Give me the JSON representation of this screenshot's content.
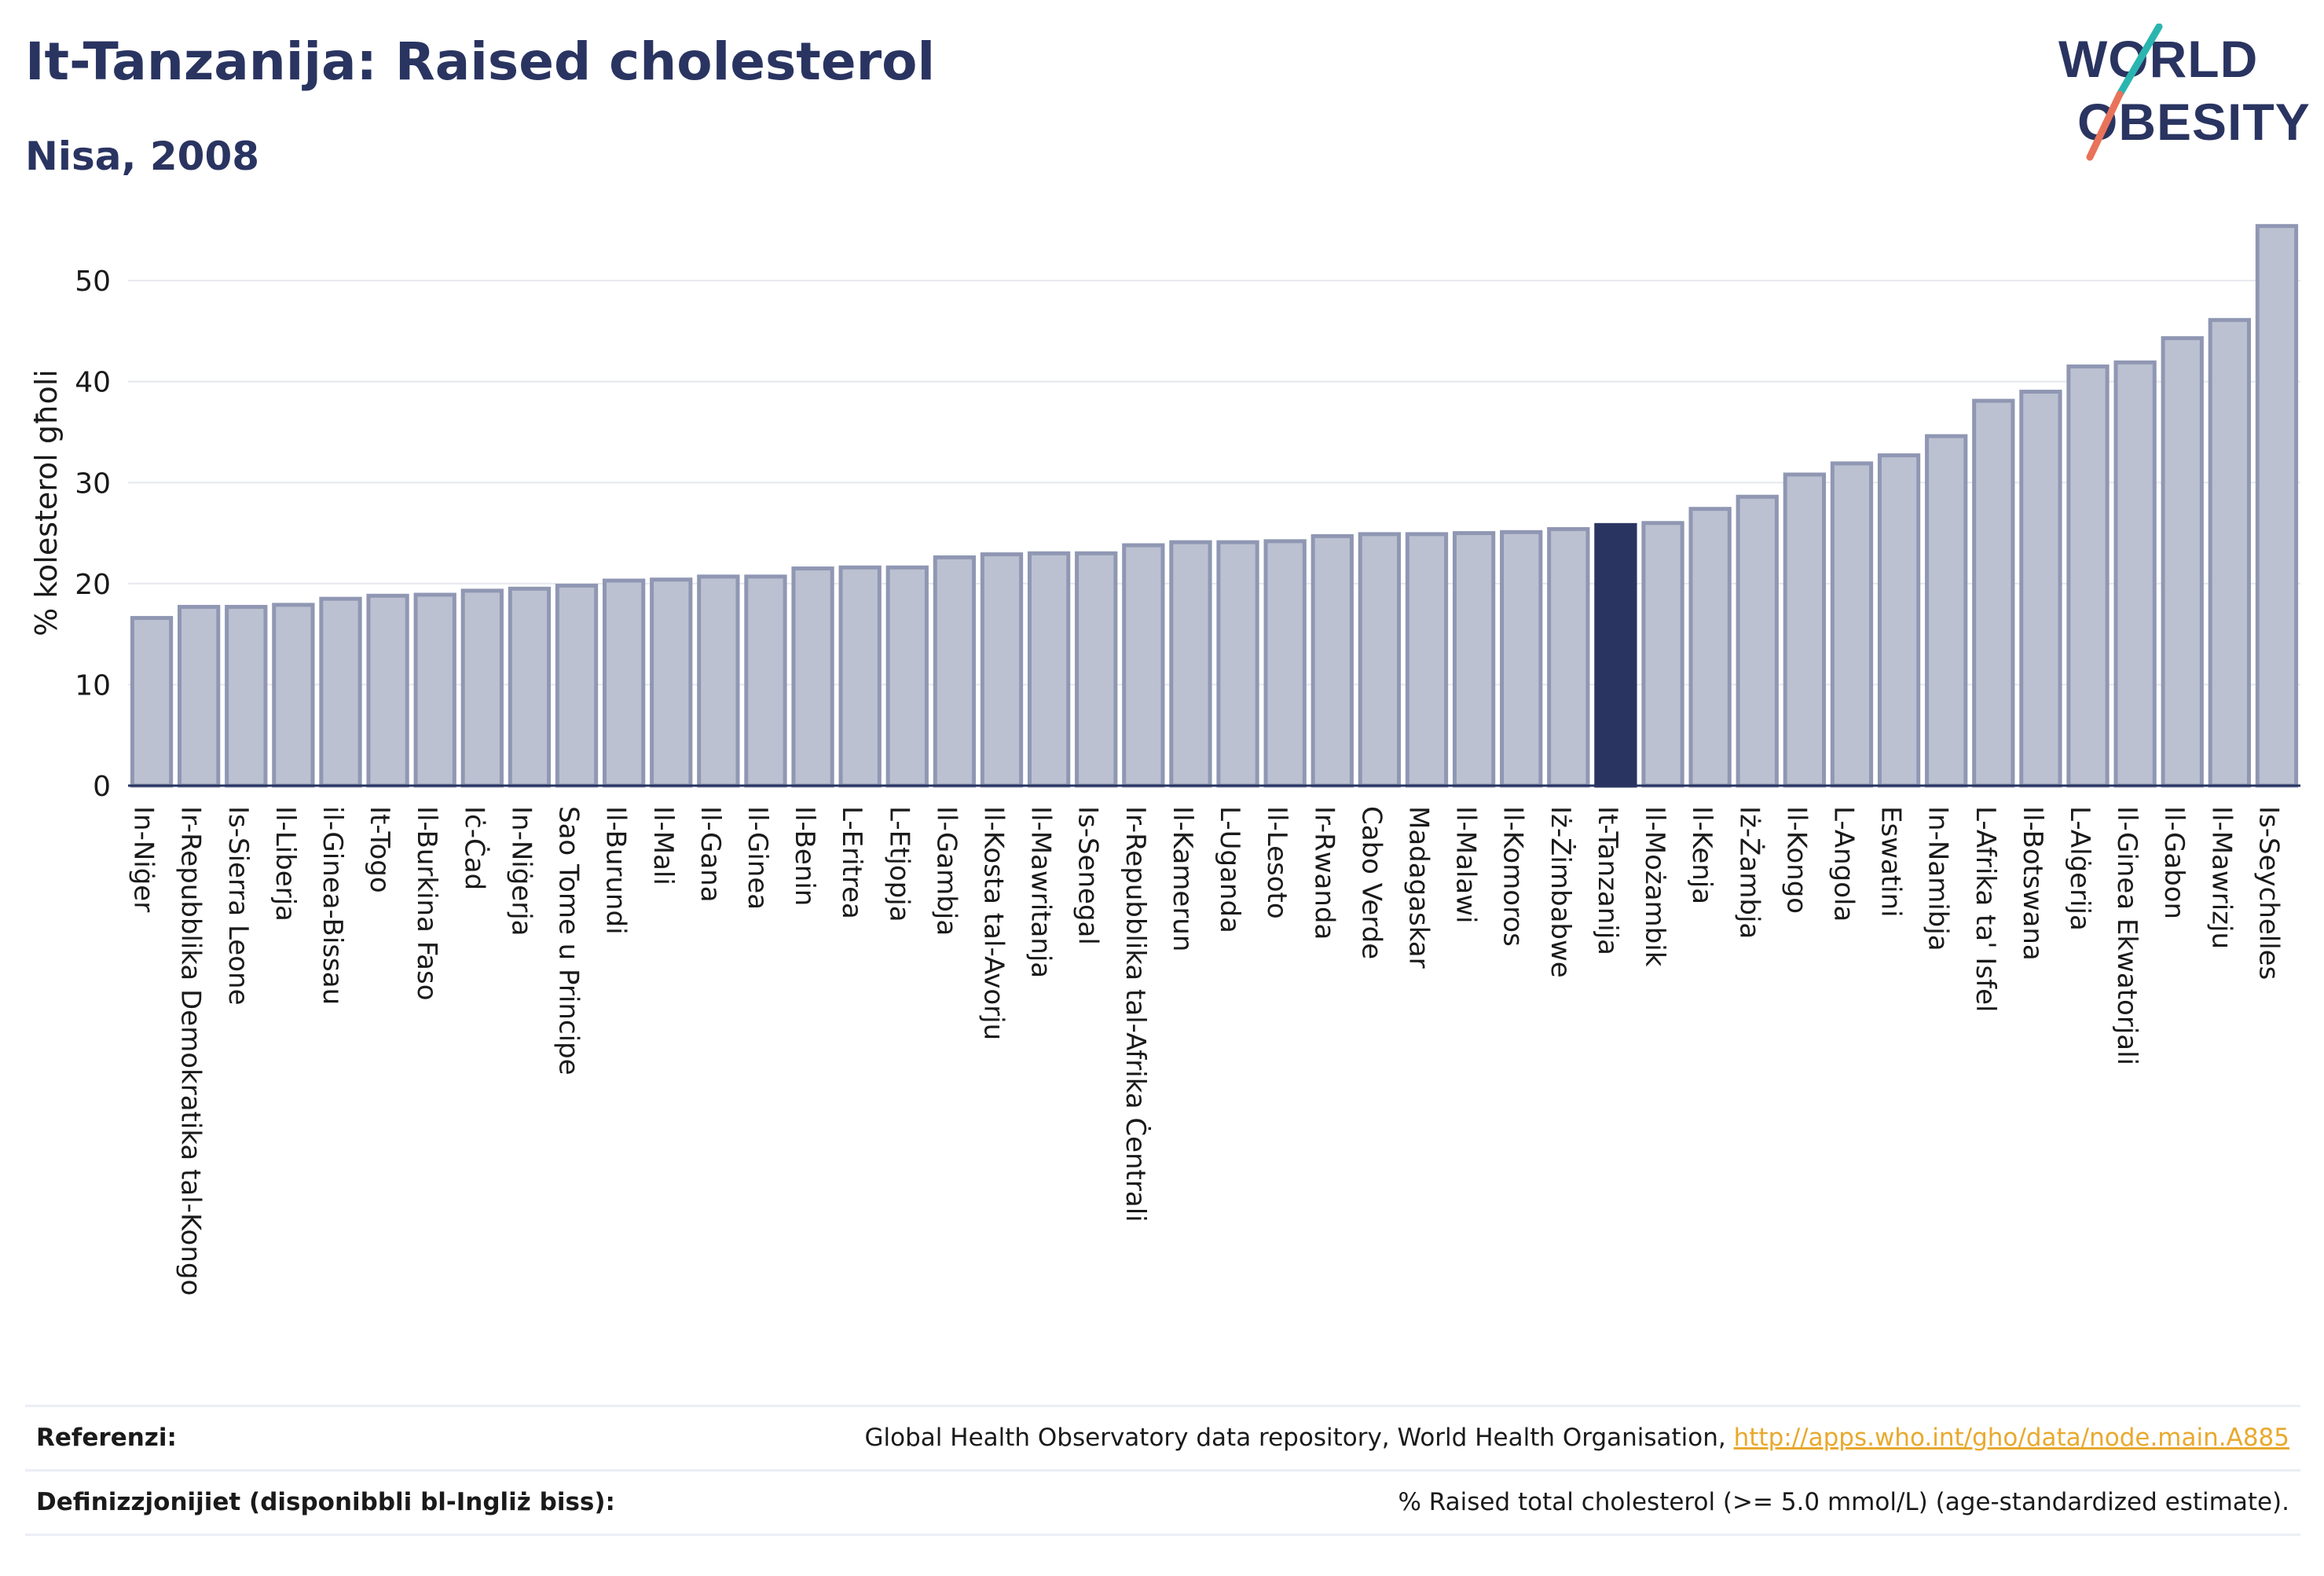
{
  "title": "It-Tanzanija: Raised cholesterol",
  "subtitle": "Nisa, 2008",
  "logo": {
    "line1": "WORLD",
    "line2": "OBESITY",
    "accent_teal": "#2bb5b0",
    "accent_coral": "#e8735a",
    "text_color": "#2a3461"
  },
  "colors": {
    "bar": "#bcc1d1",
    "bar_stroke": "#8f97b3",
    "highlight": "#2a3461",
    "grid": "#e6e8ef"
  },
  "footer": {
    "references_label": "Referenzi:",
    "references_text": "Global Health Observatory data repository, World Health Organisation, ",
    "references_link": "http://apps.who.int/gho/data/node.main.A885",
    "definitions_label": "Definizzjonijiet (disponibbli bl-Ingliż biss):",
    "definitions_text": "% Raised total cholesterol (>= 5.0 mmol/L) (age-standardized estimate)."
  },
  "chart_data": {
    "type": "bar",
    "title": "It-Tanzanija: Raised cholesterol",
    "subtitle": "Nisa, 2008",
    "xlabel": "",
    "ylabel": "% kolesterol għoli",
    "ylim": [
      0,
      56
    ],
    "yticks": [
      0,
      10,
      20,
      30,
      40,
      50
    ],
    "grid": true,
    "highlight": "It-Tanzanija",
    "categories": [
      "In-Niġer",
      "Ir-Repubblika Demokratika tal-Kongo",
      "Is-Sierra Leone",
      "Il-Liberja",
      "il-Ginea-Bissau",
      "It-Togo",
      "Il-Burkina Faso",
      "Iċ-Ċad",
      "In-Niġerja",
      "Sao Tome u Principe",
      "Il-Burundi",
      "Il-Mali",
      "Il-Gana",
      "Il-Ginea",
      "Il-Benin",
      "L-Eritrea",
      "L-Etjopja",
      "Il-Gambja",
      "Il-Kosta tal-Avorju",
      "Il-Mawritanja",
      "Is-Senegal",
      "Ir-Repubblika tal-Afrika Ċentrali",
      "Il-Kamerun",
      "L-Uganda",
      "Il-Lesoto",
      "Ir-Rwanda",
      "Cabo Verde",
      "Madagaskar",
      "Il-Malawi",
      "Il-Komoros",
      "Iż-Żimbabwe",
      "It-Tanzanija",
      "Il-Możambik",
      "Il-Kenja",
      "Iż-Żambja",
      "Il-Kongo",
      "L-Angola",
      "Eswatini",
      "In-Namibja",
      "L-Afrika ta' Isfel",
      "Il-Botswana",
      "L-Alġerija",
      "Il-Ginea Ekwatorjali",
      "Il-Gabon",
      "Il-Mawrizju",
      "Is-Seychelles"
    ],
    "values": [
      16.6,
      17.7,
      17.7,
      17.9,
      18.5,
      18.8,
      18.9,
      19.3,
      19.5,
      19.8,
      20.3,
      20.4,
      20.7,
      20.7,
      21.5,
      21.6,
      21.6,
      22.6,
      22.9,
      23.0,
      23.0,
      23.8,
      24.1,
      24.1,
      24.2,
      24.7,
      24.9,
      24.9,
      25.0,
      25.1,
      25.4,
      25.8,
      26.0,
      27.4,
      28.6,
      30.8,
      31.9,
      32.7,
      34.6,
      38.1,
      39.0,
      41.5,
      41.9,
      44.3,
      46.1,
      55.4
    ]
  }
}
